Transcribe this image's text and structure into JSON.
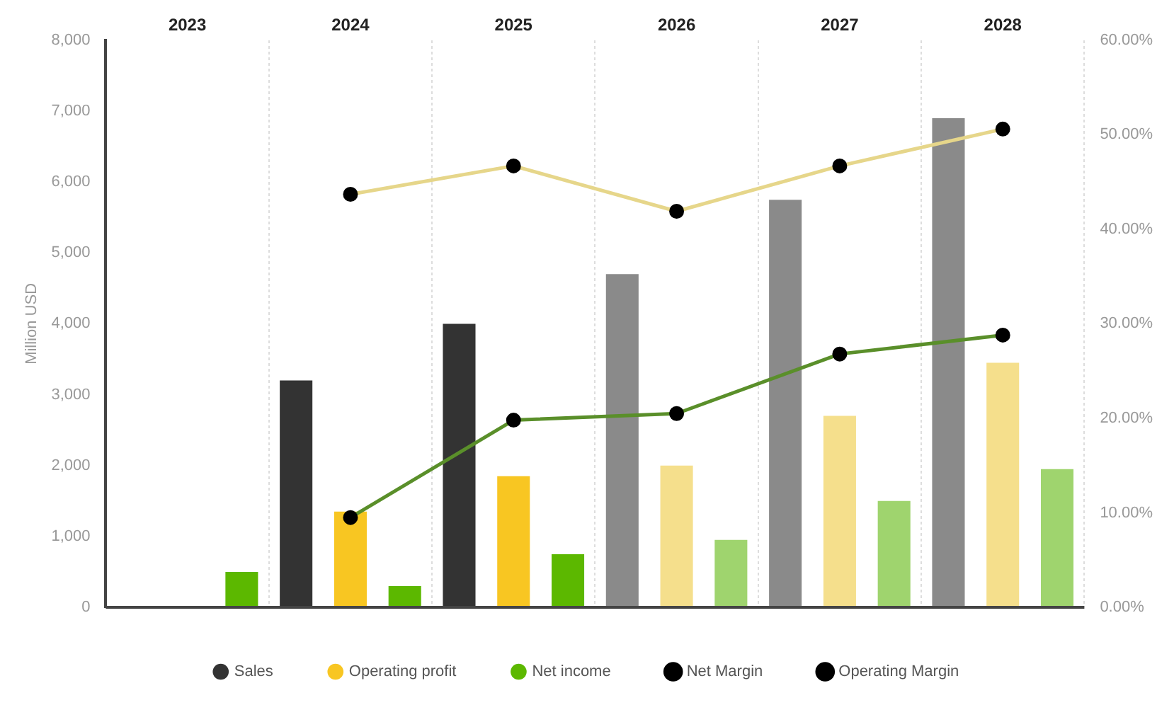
{
  "chart_data": {
    "type": "bar",
    "ylabel": "Million USD",
    "categories": [
      "2023",
      "2024",
      "2025",
      "2026",
      "2027",
      "2028"
    ],
    "series": [
      {
        "name": "Sales",
        "color": "#333333",
        "colors": [
          "#333333",
          "#333333",
          "#333333",
          "#8a8a8a",
          "#8a8a8a",
          "#8a8a8a"
        ],
        "values": [
          null,
          3200,
          4000,
          4700,
          5750,
          6900
        ]
      },
      {
        "name": "Operating profit",
        "color": "#f8c622",
        "colors": [
          "#f8c622",
          "#f8c622",
          "#f8c622",
          "#f5df8c",
          "#f5df8c",
          "#f5df8c"
        ],
        "values": [
          null,
          1350,
          1850,
          2000,
          2700,
          3450
        ]
      },
      {
        "name": "Net income",
        "color": "#5cb800",
        "colors": [
          "#5cb800",
          "#5cb800",
          "#5cb800",
          "#9fd46e",
          "#9fd46e",
          "#9fd46e"
        ],
        "values": [
          500,
          300,
          750,
          950,
          1500,
          1950
        ]
      },
      {
        "name": "Net Margin",
        "type": "line",
        "axis": "y2",
        "color": "#5a8f2a",
        "values": [
          null,
          9.5,
          19.8,
          20.5,
          26.8,
          28.8
        ]
      },
      {
        "name": "Operating Margin",
        "type": "line",
        "axis": "y2",
        "color": "#e6d68a",
        "values": [
          null,
          43.7,
          46.7,
          41.9,
          46.7,
          50.6
        ]
      }
    ],
    "ylim": [
      0,
      8000
    ],
    "yticks": [
      0,
      {
        "value": 1000,
        "label": "1,000"
      },
      {
        "value": 2000,
        "label": "2,000"
      },
      {
        "value": 3000,
        "label": "3,000"
      },
      {
        "value": 4000,
        "label": "4,000"
      },
      {
        "value": 5000,
        "label": "5,000"
      },
      {
        "value": 6000,
        "label": "6,000"
      },
      {
        "value": 7000,
        "label": "7,000"
      },
      {
        "value": 8000,
        "label": "8,000"
      }
    ],
    "y2lim": [
      0,
      60
    ],
    "y2ticks": [
      {
        "value": 0,
        "label": "0.00%"
      },
      {
        "value": 10,
        "label": "10.00%"
      },
      {
        "value": 20,
        "label": "20.00%"
      },
      {
        "value": 30,
        "label": "30.00%"
      },
      {
        "value": 40,
        "label": "40.00%"
      },
      {
        "value": 50,
        "label": "50.00%"
      },
      {
        "value": 60,
        "label": "60.00%"
      }
    ],
    "grid": "x",
    "legend": "bottom",
    "marker": "circle"
  }
}
